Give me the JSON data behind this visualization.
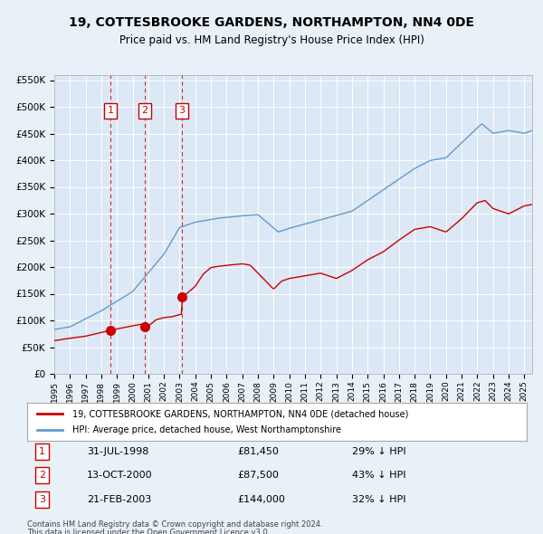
{
  "title": "19, COTTESBROOKE GARDENS, NORTHAMPTON, NN4 0DE",
  "subtitle": "Price paid vs. HM Land Registry's House Price Index (HPI)",
  "legend_red": "19, COTTESBROOKE GARDENS, NORTHAMPTON, NN4 0DE (detached house)",
  "legend_blue": "HPI: Average price, detached house, West Northamptonshire",
  "footer1": "Contains HM Land Registry data © Crown copyright and database right 2024.",
  "footer2": "This data is licensed under the Open Government Licence v3.0.",
  "transactions": [
    {
      "num": 1,
      "date": "31-JUL-1998",
      "price": 81450,
      "pct": "29%",
      "dir": "↓"
    },
    {
      "num": 2,
      "date": "13-OCT-2000",
      "price": 87500,
      "pct": "43%",
      "dir": "↓"
    },
    {
      "num": 3,
      "date": "21-FEB-2003",
      "price": 144000,
      "pct": "32%",
      "dir": "↓"
    }
  ],
  "transaction_dates_decimal": [
    1998.58,
    2000.78,
    2003.13
  ],
  "transaction_prices": [
    81450,
    87500,
    144000
  ],
  "bg_color": "#e8f0f8",
  "plot_bg": "#dce8f5",
  "red_color": "#cc0000",
  "blue_color": "#6699cc",
  "vline_color": "#cc0000",
  "grid_color": "#ffffff",
  "ylim": [
    0,
    560000
  ],
  "yticks": [
    0,
    50000,
    100000,
    150000,
    200000,
    250000,
    300000,
    350000,
    400000,
    450000,
    500000,
    550000
  ],
  "xlim_start": 1995.0,
  "xlim_end": 2025.5
}
